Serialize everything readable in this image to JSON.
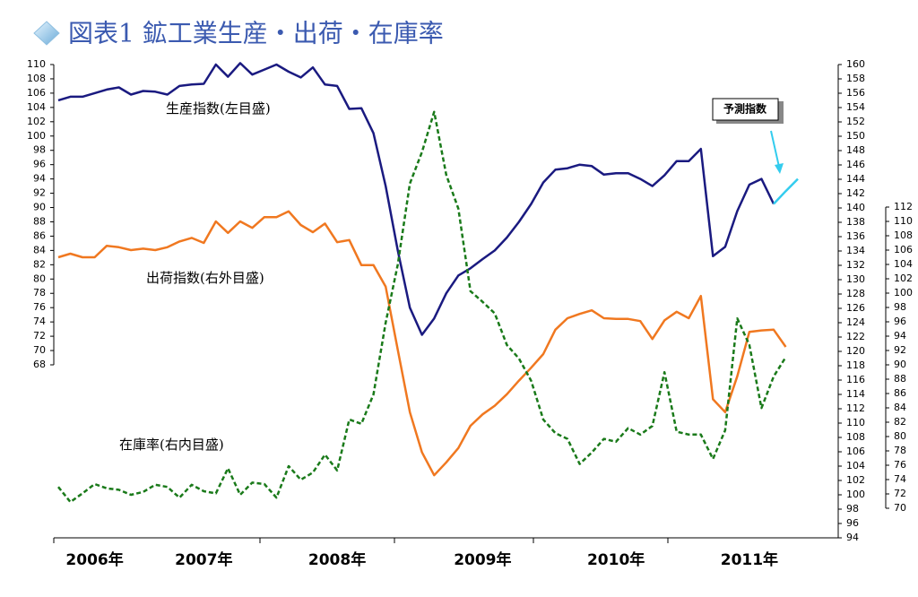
{
  "chart_data": {
    "type": "line",
    "title": "図表1 鉱工業生産・出荷・在庫率",
    "categories": [
      null,
      null,
      null,
      "2006年",
      null,
      null,
      null,
      null,
      null,
      null,
      null,
      null,
      "2007年",
      null,
      null,
      null,
      null,
      null,
      null,
      null,
      null,
      null,
      null,
      "2008年",
      null,
      null,
      null,
      null,
      null,
      null,
      null,
      null,
      null,
      null,
      null,
      "2009年",
      null,
      null,
      null,
      null,
      null,
      null,
      null,
      null,
      null,
      null,
      "2010年",
      null,
      null,
      null,
      null,
      null,
      null,
      null,
      null,
      null,
      null,
      "2011年",
      null,
      null,
      null,
      null
    ],
    "series": [
      {
        "name": "生産指数(左目盛)",
        "color": "#1a1a80",
        "axis": "y",
        "dashed": false,
        "values": [
          105,
          105.5,
          105.5,
          106,
          106.5,
          106.8,
          105.8,
          106.3,
          106.2,
          105.8,
          107,
          107.2,
          107.3,
          110,
          108.3,
          110.2,
          108.6,
          109.3,
          110,
          109,
          108.2,
          109.6,
          107.2,
          107,
          103.8,
          103.9,
          100.4,
          93,
          84,
          76,
          72.2,
          74.5,
          78,
          80.5,
          81.5,
          82.8,
          84,
          85.8,
          88,
          90.5,
          93.5,
          95.3,
          95.5,
          96,
          95.8,
          94.6,
          94.8,
          94.8,
          94,
          93,
          94.5,
          96.5,
          96.5,
          98.2,
          83.2,
          84.5,
          89.5,
          93.2,
          94,
          90.5,
          null,
          null
        ]
      },
      {
        "name": "予測指数",
        "color": "#33ccee",
        "axis": "y",
        "dashed": false,
        "values": [
          null,
          null,
          null,
          null,
          null,
          null,
          null,
          null,
          null,
          null,
          null,
          null,
          null,
          null,
          null,
          null,
          null,
          null,
          null,
          null,
          null,
          null,
          null,
          null,
          null,
          null,
          null,
          null,
          null,
          null,
          null,
          null,
          null,
          null,
          null,
          null,
          null,
          null,
          null,
          null,
          null,
          null,
          null,
          null,
          null,
          null,
          null,
          null,
          null,
          null,
          null,
          null,
          null,
          null,
          null,
          null,
          null,
          null,
          null,
          90.5,
          92.3,
          94
        ]
      },
      {
        "name": "出荷指数(右外目盛)",
        "color": "#f07820",
        "axis": "y3",
        "dashed": false,
        "values": [
          105,
          105.5,
          105,
          105,
          106.6,
          106.4,
          106,
          106.2,
          106,
          106.4,
          107.2,
          107.7,
          107,
          110,
          108.4,
          110,
          109.1,
          110.6,
          110.6,
          111.4,
          109.5,
          108.5,
          109.7,
          107.1,
          107.4,
          103.9,
          103.9,
          100.9,
          92.1,
          83.4,
          77.8,
          74.6,
          76.4,
          78.4,
          81.5,
          83.1,
          84.3,
          85.9,
          87.8,
          89.6,
          91.5,
          94.9,
          96.5,
          97.1,
          97.6,
          96.5,
          96.4,
          96.4,
          96.1,
          93.6,
          96.2,
          97.4,
          96.5,
          99.6,
          85.2,
          83.4,
          88.4,
          94.6,
          94.8,
          94.9,
          92.5,
          null
        ]
      },
      {
        "name": "在庫率(右内目盛)",
        "color": "#1a7a1a",
        "axis": "y2",
        "dashed": true,
        "values": [
          101.1,
          99,
          100.2,
          101.5,
          100.9,
          100.7,
          100,
          100.4,
          101.4,
          101.1,
          99.6,
          101.4,
          100.5,
          100.2,
          103.7,
          100,
          101.7,
          101.5,
          99.6,
          104,
          102.1,
          103.1,
          105.6,
          103.4,
          110.5,
          109.9,
          114,
          124,
          132.1,
          143.4,
          147.8,
          153.4,
          144.6,
          139.9,
          128.4,
          126.9,
          125.3,
          120.9,
          119,
          115.9,
          110.5,
          108.6,
          107.8,
          104.3,
          105.9,
          107.8,
          107.4,
          109.3,
          108.4,
          109.6,
          117.1,
          108.8,
          108.4,
          108.4,
          105,
          109,
          124.6,
          120.9,
          112.1,
          116.5,
          119.2,
          null
        ]
      }
    ],
    "ylim": [
      68,
      110
    ],
    "yticks": [
      68,
      70,
      72,
      74,
      76,
      78,
      80,
      82,
      84,
      86,
      88,
      90,
      92,
      94,
      96,
      98,
      100,
      102,
      104,
      106,
      108,
      110
    ],
    "y2lim": [
      94,
      160
    ],
    "y2ticks": [
      94,
      96,
      98,
      100,
      102,
      104,
      106,
      108,
      110,
      112,
      114,
      116,
      118,
      120,
      122,
      124,
      126,
      128,
      130,
      132,
      134,
      136,
      138,
      140,
      142,
      144,
      146,
      148,
      150,
      152,
      154,
      156,
      158,
      160
    ],
    "y3lim": [
      70,
      112
    ],
    "y3ticks": [
      70,
      72,
      74,
      76,
      78,
      80,
      82,
      84,
      86,
      88,
      90,
      92,
      94,
      96,
      98,
      100,
      102,
      104,
      106,
      108,
      110,
      112
    ],
    "grid": false
  }
}
